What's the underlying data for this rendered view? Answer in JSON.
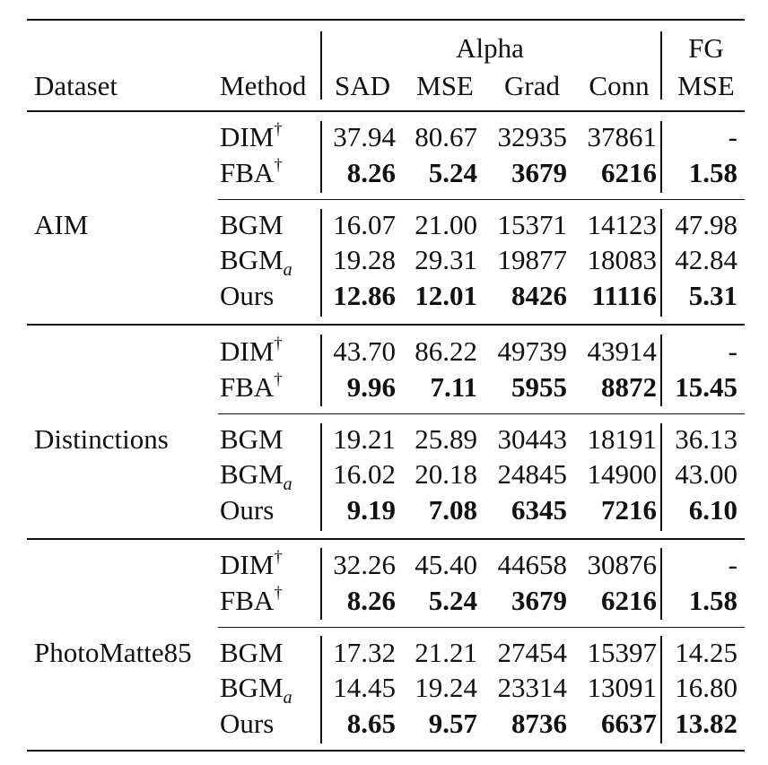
{
  "header": {
    "dataset": "Dataset",
    "method": "Method",
    "alpha": "Alpha",
    "fg": "FG",
    "sad": "SAD",
    "mse": "MSE",
    "grad": "Grad",
    "conn": "Conn",
    "fg_mse": "MSE"
  },
  "groups": [
    {
      "dataset": "AIM",
      "rows": [
        {
          "method": "DIM",
          "mark": "†",
          "sub": "",
          "sad": "37.94",
          "mse": "80.67",
          "grad": "32935",
          "conn": "37861",
          "fg": "-",
          "bold": false
        },
        {
          "method": "FBA",
          "mark": "†",
          "sub": "",
          "sad": "8.26",
          "mse": "5.24",
          "grad": "3679",
          "conn": "6216",
          "fg": "1.58",
          "bold": true
        },
        {
          "method": "BGM",
          "mark": "",
          "sub": "",
          "sad": "16.07",
          "mse": "21.00",
          "grad": "15371",
          "conn": "14123",
          "fg": "47.98",
          "bold": false
        },
        {
          "method": "BGM",
          "mark": "",
          "sub": "a",
          "sad": "19.28",
          "mse": "29.31",
          "grad": "19877",
          "conn": "18083",
          "fg": "42.84",
          "bold": false
        },
        {
          "method": "Ours",
          "mark": "",
          "sub": "",
          "sad": "12.86",
          "mse": "12.01",
          "grad": "8426",
          "conn": "11116",
          "fg": "5.31",
          "bold": true
        }
      ]
    },
    {
      "dataset": "Distinctions",
      "rows": [
        {
          "method": "DIM",
          "mark": "†",
          "sub": "",
          "sad": "43.70",
          "mse": "86.22",
          "grad": "49739",
          "conn": "43914",
          "fg": "-",
          "bold": false
        },
        {
          "method": "FBA",
          "mark": "†",
          "sub": "",
          "sad": "9.96",
          "mse": "7.11",
          "grad": "5955",
          "conn": "8872",
          "fg": "15.45",
          "bold": true
        },
        {
          "method": "BGM",
          "mark": "",
          "sub": "",
          "sad": "19.21",
          "mse": "25.89",
          "grad": "30443",
          "conn": "18191",
          "fg": "36.13",
          "bold": false
        },
        {
          "method": "BGM",
          "mark": "",
          "sub": "a",
          "sad": "16.02",
          "mse": "20.18",
          "grad": "24845",
          "conn": "14900",
          "fg": "43.00",
          "bold": false
        },
        {
          "method": "Ours",
          "mark": "",
          "sub": "",
          "sad": "9.19",
          "mse": "7.08",
          "grad": "6345",
          "conn": "7216",
          "fg": "6.10",
          "bold": true
        }
      ]
    },
    {
      "dataset": "PhotoMatte85",
      "rows": [
        {
          "method": "DIM",
          "mark": "†",
          "sub": "",
          "sad": "32.26",
          "mse": "45.40",
          "grad": "44658",
          "conn": "30876",
          "fg": "-",
          "bold": false
        },
        {
          "method": "FBA",
          "mark": "†",
          "sub": "",
          "sad": "8.26",
          "mse": "5.24",
          "grad": "3679",
          "conn": "6216",
          "fg": "1.58",
          "bold": true
        },
        {
          "method": "BGM",
          "mark": "",
          "sub": "",
          "sad": "17.32",
          "mse": "21.21",
          "grad": "27454",
          "conn": "15397",
          "fg": "14.25",
          "bold": false
        },
        {
          "method": "BGM",
          "mark": "",
          "sub": "a",
          "sad": "14.45",
          "mse": "19.24",
          "grad": "23314",
          "conn": "13091",
          "fg": "16.80",
          "bold": false
        },
        {
          "method": "Ours",
          "mark": "",
          "sub": "",
          "sad": "8.65",
          "mse": "9.57",
          "grad": "8736",
          "conn": "6637",
          "fg": "13.82",
          "bold": true
        }
      ]
    }
  ]
}
